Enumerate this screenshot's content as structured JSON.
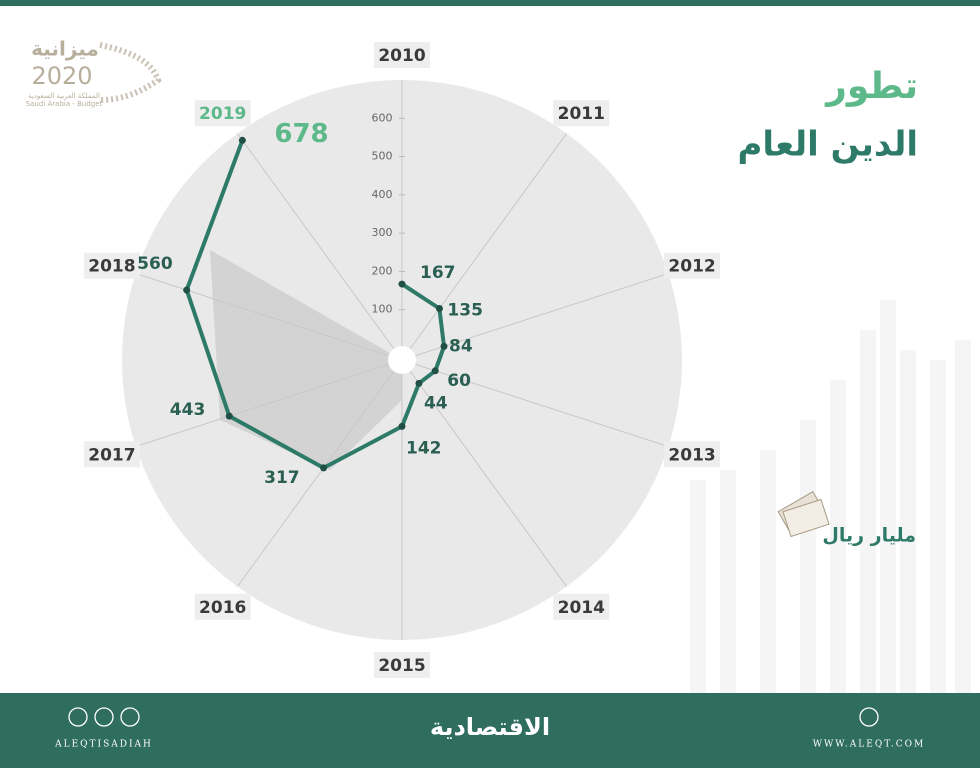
{
  "logo": {
    "name": "ميزانية",
    "year": "2020",
    "caption_ar": "المملكة العربية السعودية",
    "caption_en": "Saudi Arabia - Budget"
  },
  "chart_data": {
    "type": "radar",
    "title": "تطور",
    "subtitle": "الدين العام",
    "unit": "مليار ريال",
    "categories": [
      "2010",
      "2011",
      "2012",
      "2013",
      "2014",
      "2015",
      "2016",
      "2017",
      "2018",
      "2019"
    ],
    "values": [
      167,
      135,
      84,
      60,
      44,
      142,
      317,
      443,
      560,
      678
    ],
    "color": "#2e7a68",
    "highlight_color": "#5db88a",
    "ylim": [
      0,
      700
    ],
    "yticks": [
      100,
      200,
      300,
      400,
      500,
      600
    ],
    "grid": true
  },
  "footer": {
    "handle": "ALEQTISADIAH",
    "brand": "الاقتصادية",
    "website": "WWW.ALEQT.COM"
  }
}
